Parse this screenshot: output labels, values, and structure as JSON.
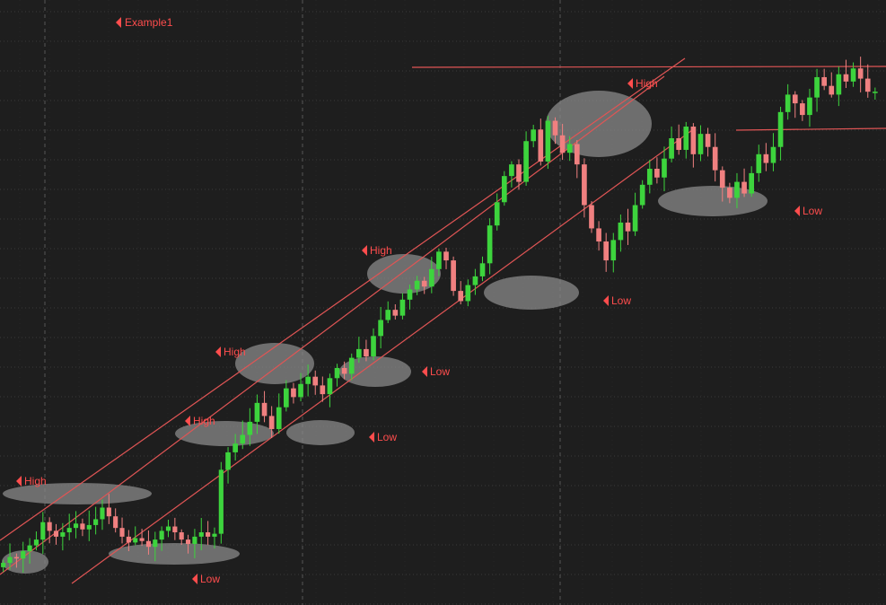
{
  "chart_data": {
    "type": "candlestick",
    "title": "Example1",
    "grid": true,
    "colors": {
      "background": "#1e1e1e",
      "grid": "#3a3a3a",
      "up": "#3dd43d",
      "down": "#f08080",
      "trendline": "#e05555",
      "label": "#ff4d4d",
      "marker": "#8a8a8a"
    },
    "annotations": [
      {
        "text": "High"
      },
      {
        "text": "Low"
      },
      {
        "text": "High"
      },
      {
        "text": "High"
      },
      {
        "text": "Low"
      },
      {
        "text": "Low"
      },
      {
        "text": "High"
      },
      {
        "text": "Low"
      },
      {
        "text": "High"
      },
      {
        "text": "Low"
      }
    ],
    "series": [
      {
        "values": [
          0.5,
          0.8,
          1.2,
          1.1,
          1.6,
          2.0,
          2.4,
          3.6,
          3.0,
          2.6,
          2.9,
          3.2,
          3.5,
          3.1,
          3.4,
          3.8,
          4.6,
          4.0,
          3.2,
          2.6,
          2.2,
          2.5,
          2.3,
          1.9,
          2.4,
          3.0,
          3.3,
          2.9,
          2.4,
          2.1,
          2.6,
          2.9,
          2.6,
          2.8,
          7.2,
          8.4,
          9.0,
          9.6,
          10.5,
          11.8,
          10.9,
          10.0,
          11.5,
          12.8,
          12.2,
          13.1,
          13.6,
          13.0,
          12.4,
          13.5,
          14.2,
          13.8,
          14.9,
          15.5,
          15.0,
          16.4,
          17.5,
          18.2,
          17.8,
          18.9,
          19.6,
          20.2,
          19.8,
          21.0,
          22.2,
          21.6,
          19.5,
          18.8,
          19.9,
          20.5,
          21.4,
          24.0,
          25.6,
          27.4,
          28.2,
          27.0,
          29.8,
          30.6,
          28.4,
          31.2,
          30.2,
          29.0,
          29.6,
          28.2,
          25.4,
          23.8,
          22.9,
          21.6,
          23.0,
          24.2,
          23.6,
          25.4,
          26.8,
          27.9,
          27.3,
          28.6,
          30.0,
          29.2,
          30.8,
          28.9,
          30.3,
          29.4,
          27.8,
          26.6,
          25.9,
          27.0,
          26.2,
          27.6,
          28.9,
          28.3,
          29.4,
          31.8,
          33.0,
          32.4,
          31.6,
          32.8,
          34.2,
          33.6,
          33.0,
          34.4,
          33.9,
          34.8,
          34.1,
          33.2
        ]
      }
    ]
  }
}
